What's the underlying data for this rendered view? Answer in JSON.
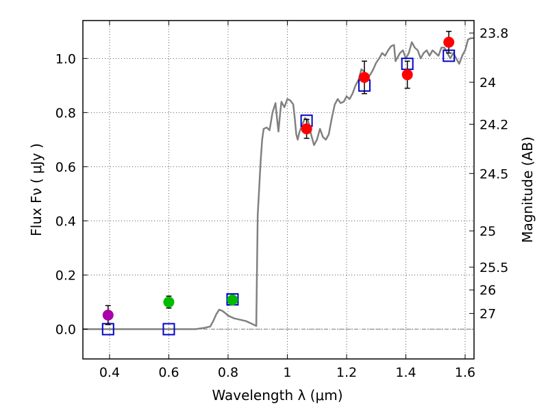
{
  "chart_data": {
    "type": "scatter",
    "xlabel": "Wavelength  λ (μm)",
    "ylabel": "Flux  Fν  ( μJy )",
    "ylabel_right": "Magnitude (AB)",
    "xlim": [
      0.31,
      1.63
    ],
    "ylim": [
      -0.11,
      1.14
    ],
    "grid": true,
    "x_ticks": [
      0.4,
      0.6,
      0.8,
      1.0,
      1.2,
      1.4,
      1.6
    ],
    "x_tick_labels": [
      "0.4",
      "0.6",
      "0.8",
      "1",
      "1.2",
      "1.4",
      "1.6"
    ],
    "y_ticks": [
      0.0,
      0.2,
      0.4,
      0.6,
      0.8,
      1.0
    ],
    "y_tick_labels": [
      "0.0",
      "0.2",
      "0.4",
      "0.6",
      "0.8",
      "1.0"
    ],
    "right_ticks": [
      {
        "flux": 1.094,
        "label": "23.8"
      },
      {
        "flux": 0.912,
        "label": "24"
      },
      {
        "flux": 0.757,
        "label": "24.2"
      },
      {
        "flux": 0.575,
        "label": "24.5"
      },
      {
        "flux": 0.363,
        "label": "25"
      },
      {
        "flux": 0.229,
        "label": "25.5"
      },
      {
        "flux": 0.145,
        "label": "26"
      },
      {
        "flux": 0.058,
        "label": "27"
      }
    ],
    "colors": {
      "template": "#808080",
      "model": "#0000cc",
      "red": "#ff0000",
      "green": "#00bb00",
      "magenta": "#aa00aa",
      "error": "#000000",
      "grid": "#555555"
    },
    "series": [
      {
        "name": "template_spectrum",
        "kind": "line",
        "color": "#808080",
        "points": [
          [
            0.31,
            0.0
          ],
          [
            0.69,
            0.0
          ],
          [
            0.72,
            0.005
          ],
          [
            0.74,
            0.01
          ],
          [
            0.75,
            0.03
          ],
          [
            0.76,
            0.055
          ],
          [
            0.77,
            0.072
          ],
          [
            0.78,
            0.068
          ],
          [
            0.79,
            0.06
          ],
          [
            0.8,
            0.05
          ],
          [
            0.82,
            0.04
          ],
          [
            0.84,
            0.035
          ],
          [
            0.86,
            0.03
          ],
          [
            0.88,
            0.02
          ],
          [
            0.895,
            0.012
          ],
          [
            0.9,
            0.42
          ],
          [
            0.91,
            0.62
          ],
          [
            0.915,
            0.7
          ],
          [
            0.92,
            0.74
          ],
          [
            0.93,
            0.745
          ],
          [
            0.94,
            0.735
          ],
          [
            0.95,
            0.8
          ],
          [
            0.96,
            0.835
          ],
          [
            0.965,
            0.78
          ],
          [
            0.97,
            0.73
          ],
          [
            0.975,
            0.79
          ],
          [
            0.98,
            0.84
          ],
          [
            0.99,
            0.82
          ],
          [
            1.0,
            0.85
          ],
          [
            1.01,
            0.845
          ],
          [
            1.02,
            0.83
          ],
          [
            1.025,
            0.78
          ],
          [
            1.03,
            0.72
          ],
          [
            1.035,
            0.7
          ],
          [
            1.04,
            0.725
          ],
          [
            1.05,
            0.755
          ],
          [
            1.06,
            0.78
          ],
          [
            1.07,
            0.77
          ],
          [
            1.08,
            0.72
          ],
          [
            1.09,
            0.68
          ],
          [
            1.1,
            0.7
          ],
          [
            1.11,
            0.74
          ],
          [
            1.12,
            0.71
          ],
          [
            1.13,
            0.7
          ],
          [
            1.14,
            0.72
          ],
          [
            1.15,
            0.78
          ],
          [
            1.16,
            0.83
          ],
          [
            1.17,
            0.85
          ],
          [
            1.18,
            0.835
          ],
          [
            1.19,
            0.84
          ],
          [
            1.2,
            0.86
          ],
          [
            1.21,
            0.85
          ],
          [
            1.22,
            0.87
          ],
          [
            1.23,
            0.9
          ],
          [
            1.24,
            0.92
          ],
          [
            1.25,
            0.96
          ],
          [
            1.26,
            0.95
          ],
          [
            1.27,
            0.93
          ],
          [
            1.28,
            0.94
          ],
          [
            1.29,
            0.96
          ],
          [
            1.3,
            0.985
          ],
          [
            1.31,
            1.0
          ],
          [
            1.32,
            1.02
          ],
          [
            1.33,
            1.01
          ],
          [
            1.34,
            1.03
          ],
          [
            1.35,
            1.045
          ],
          [
            1.36,
            1.05
          ],
          [
            1.365,
            0.99
          ],
          [
            1.37,
            1.0
          ],
          [
            1.38,
            1.02
          ],
          [
            1.39,
            1.03
          ],
          [
            1.4,
            1.0
          ],
          [
            1.41,
            1.02
          ],
          [
            1.42,
            1.06
          ],
          [
            1.43,
            1.04
          ],
          [
            1.44,
            1.03
          ],
          [
            1.45,
            1.0
          ],
          [
            1.46,
            1.02
          ],
          [
            1.47,
            1.03
          ],
          [
            1.48,
            1.01
          ],
          [
            1.49,
            1.03
          ],
          [
            1.5,
            1.02
          ],
          [
            1.51,
            1.01
          ],
          [
            1.52,
            1.04
          ],
          [
            1.53,
            1.04
          ],
          [
            1.54,
            1.02
          ],
          [
            1.55,
            1.0
          ],
          [
            1.56,
            1.02
          ],
          [
            1.57,
            1.0
          ],
          [
            1.58,
            0.98
          ],
          [
            1.59,
            1.01
          ],
          [
            1.6,
            1.03
          ],
          [
            1.61,
            1.07
          ],
          [
            1.62,
            1.075
          ],
          [
            1.63,
            1.075
          ]
        ]
      },
      {
        "name": "model_squares",
        "kind": "square",
        "color": "#0000cc",
        "x": [
          0.395,
          0.6,
          0.815,
          1.065,
          1.26,
          1.405,
          1.545
        ],
        "y": [
          0.0,
          0.0,
          0.11,
          0.77,
          0.9,
          0.98,
          1.01
        ]
      },
      {
        "name": "observed_red",
        "kind": "circle",
        "color": "#ff0000",
        "x": [
          1.065,
          1.26,
          1.405,
          1.545
        ],
        "y": [
          0.74,
          0.93,
          0.94,
          1.06
        ],
        "err": [
          0.035,
          0.06,
          0.05,
          0.04
        ]
      },
      {
        "name": "observed_green",
        "kind": "circle",
        "color": "#00bb00",
        "x": [
          0.6,
          0.815
        ],
        "y": [
          0.1,
          0.108
        ],
        "err": [
          0.022,
          0.015
        ]
      },
      {
        "name": "observed_magenta",
        "kind": "circle",
        "color": "#aa00aa",
        "x": [
          0.395
        ],
        "y": [
          0.052
        ],
        "err": [
          0.035
        ]
      }
    ]
  }
}
